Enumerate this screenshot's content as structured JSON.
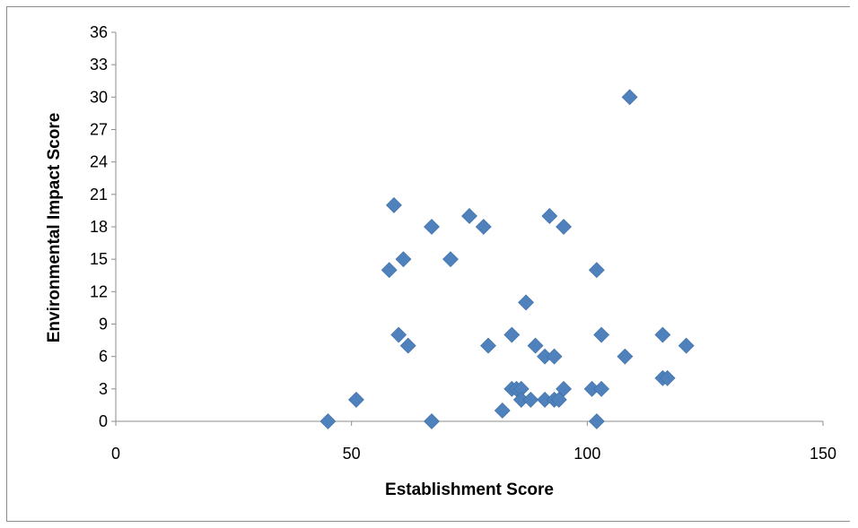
{
  "chart_data": {
    "type": "scatter",
    "xlabel": "Establishment Score",
    "ylabel": "Environmental Impact Score",
    "xlim": [
      0,
      150
    ],
    "ylim": [
      0,
      36
    ],
    "xticks": [
      0,
      50,
      100,
      150
    ],
    "yticks": [
      0,
      3,
      6,
      9,
      12,
      15,
      18,
      21,
      24,
      27,
      30,
      33,
      36
    ],
    "grid": false,
    "legend": "none",
    "marker": "diamond",
    "marker_color": "#4f81bd",
    "series": [
      {
        "points": [
          {
            "x": 45,
            "y": 0
          },
          {
            "x": 51,
            "y": 2
          },
          {
            "x": 58,
            "y": 14
          },
          {
            "x": 59,
            "y": 20
          },
          {
            "x": 60,
            "y": 8
          },
          {
            "x": 61,
            "y": 15
          },
          {
            "x": 62,
            "y": 7
          },
          {
            "x": 67,
            "y": 18
          },
          {
            "x": 67,
            "y": 0
          },
          {
            "x": 71,
            "y": 15
          },
          {
            "x": 75,
            "y": 19
          },
          {
            "x": 78,
            "y": 18
          },
          {
            "x": 79,
            "y": 7
          },
          {
            "x": 82,
            "y": 1
          },
          {
            "x": 84,
            "y": 8
          },
          {
            "x": 84,
            "y": 3
          },
          {
            "x": 85,
            "y": 3
          },
          {
            "x": 86,
            "y": 3
          },
          {
            "x": 86,
            "y": 2
          },
          {
            "x": 87,
            "y": 11
          },
          {
            "x": 88,
            "y": 2
          },
          {
            "x": 89,
            "y": 7
          },
          {
            "x": 91,
            "y": 6
          },
          {
            "x": 91,
            "y": 2
          },
          {
            "x": 92,
            "y": 19
          },
          {
            "x": 93,
            "y": 6
          },
          {
            "x": 93,
            "y": 2
          },
          {
            "x": 94,
            "y": 2
          },
          {
            "x": 95,
            "y": 18
          },
          {
            "x": 95,
            "y": 3
          },
          {
            "x": 101,
            "y": 3
          },
          {
            "x": 102,
            "y": 14
          },
          {
            "x": 102,
            "y": 0
          },
          {
            "x": 103,
            "y": 8
          },
          {
            "x": 103,
            "y": 3
          },
          {
            "x": 108,
            "y": 6
          },
          {
            "x": 109,
            "y": 30
          },
          {
            "x": 116,
            "y": 8
          },
          {
            "x": 116,
            "y": 4
          },
          {
            "x": 117,
            "y": 4
          },
          {
            "x": 121,
            "y": 7
          }
        ]
      }
    ]
  }
}
